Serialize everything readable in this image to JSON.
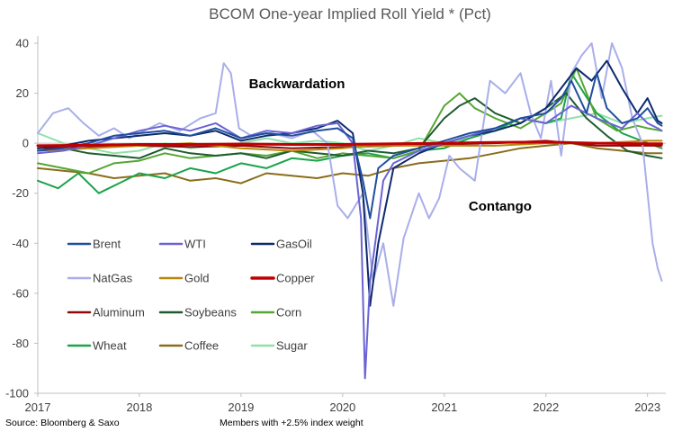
{
  "chart_data": {
    "type": "line",
    "title": "BCOM One-year Implied Roll Yield * (Pct)",
    "xlabel": "",
    "ylabel": "",
    "xlim": [
      2017.0,
      2023.18
    ],
    "ylim": [
      -100,
      42
    ],
    "x_ticks": [
      "2017",
      "2018",
      "2019",
      "2020",
      "2021",
      "2022",
      "2023"
    ],
    "y_ticks": [
      "40",
      "20",
      "0",
      "-20",
      "-40",
      "-60",
      "-80",
      "-100"
    ],
    "grid": false,
    "legend_placement": "lower-left",
    "annotations": [
      "Backwardation",
      "Contango"
    ],
    "series": [
      {
        "name": "Brent",
        "color": "#1f4e9e",
        "width": 2,
        "x": [
          2017.0,
          2017.25,
          2017.5,
          2017.75,
          2018.0,
          2018.25,
          2018.5,
          2018.75,
          2019.0,
          2019.25,
          2019.5,
          2019.75,
          2019.95,
          2020.1,
          2020.2,
          2020.27,
          2020.35,
          2020.5,
          2020.75,
          2021.0,
          2021.25,
          2021.5,
          2021.75,
          2022.0,
          2022.15,
          2022.25,
          2022.4,
          2022.5,
          2022.6,
          2022.75,
          2022.9,
          2023.0,
          2023.1,
          2023.14
        ],
        "y": [
          -3,
          -2,
          0,
          3,
          4,
          5,
          3,
          6,
          2,
          4,
          3,
          5,
          6,
          2,
          -15,
          -30,
          -10,
          -5,
          -2,
          1,
          4,
          6,
          10,
          12,
          18,
          25,
          12,
          28,
          14,
          8,
          10,
          14,
          8,
          7
        ]
      },
      {
        "name": "WTI",
        "color": "#6b63d4",
        "width": 2,
        "x": [
          2017.0,
          2017.25,
          2017.5,
          2017.75,
          2018.0,
          2018.25,
          2018.5,
          2018.75,
          2019.0,
          2019.25,
          2019.5,
          2019.75,
          2019.95,
          2020.1,
          2020.18,
          2020.22,
          2020.27,
          2020.32,
          2020.4,
          2020.5,
          2020.75,
          2021.0,
          2021.25,
          2021.5,
          2021.75,
          2022.0,
          2022.25,
          2022.5,
          2022.75,
          2022.9,
          2023.0,
          2023.1,
          2023.14
        ],
        "y": [
          -4,
          -3,
          -1,
          2,
          5,
          7,
          5,
          8,
          2,
          5,
          4,
          7,
          8,
          0,
          -30,
          -94,
          -55,
          -40,
          -15,
          -8,
          -3,
          0,
          3,
          6,
          10,
          8,
          15,
          10,
          6,
          12,
          8,
          6,
          5
        ]
      },
      {
        "name": "GasOil",
        "color": "#0d2a6e",
        "width": 2,
        "x": [
          2017.0,
          2017.25,
          2017.5,
          2017.75,
          2018.0,
          2018.25,
          2018.5,
          2018.75,
          2019.0,
          2019.25,
          2019.5,
          2019.75,
          2019.95,
          2020.1,
          2020.2,
          2020.27,
          2020.35,
          2020.5,
          2020.75,
          2021.0,
          2021.25,
          2021.5,
          2021.75,
          2022.0,
          2022.15,
          2022.3,
          2022.45,
          2022.6,
          2022.75,
          2022.9,
          2023.0,
          2023.1,
          2023.14
        ],
        "y": [
          -2,
          -1,
          1,
          2,
          3,
          4,
          3,
          5,
          1,
          3,
          4,
          6,
          9,
          4,
          -20,
          -65,
          -40,
          -10,
          -4,
          0,
          3,
          5,
          8,
          14,
          22,
          30,
          25,
          33,
          22,
          12,
          18,
          9,
          8
        ]
      },
      {
        "name": "NatGas",
        "color": "#a9aeea",
        "width": 2,
        "x": [
          2017.0,
          2017.15,
          2017.3,
          2017.45,
          2017.6,
          2017.75,
          2017.9,
          2018.0,
          2018.2,
          2018.4,
          2018.6,
          2018.75,
          2018.83,
          2018.9,
          2018.98,
          2019.1,
          2019.3,
          2019.5,
          2019.7,
          2019.85,
          2019.95,
          2020.05,
          2020.2,
          2020.3,
          2020.4,
          2020.5,
          2020.6,
          2020.75,
          2020.85,
          2020.95,
          2021.05,
          2021.15,
          2021.3,
          2021.45,
          2021.6,
          2021.75,
          2021.85,
          2021.95,
          2022.05,
          2022.15,
          2022.25,
          2022.35,
          2022.45,
          2022.55,
          2022.65,
          2022.75,
          2022.85,
          2022.95,
          2023.0,
          2023.05,
          2023.1,
          2023.14
        ],
        "y": [
          4,
          12,
          14,
          8,
          3,
          6,
          2,
          4,
          8,
          5,
          10,
          12,
          32,
          28,
          6,
          3,
          4,
          2,
          5,
          0,
          -25,
          -30,
          -20,
          -55,
          -40,
          -65,
          -38,
          -20,
          -30,
          -22,
          -5,
          -10,
          -15,
          25,
          20,
          28,
          12,
          2,
          25,
          -5,
          28,
          35,
          40,
          18,
          40,
          30,
          10,
          0,
          -20,
          -40,
          -50,
          -55
        ]
      },
      {
        "name": "Gold",
        "color": "#b8860b",
        "width": 2,
        "x": [
          2017.0,
          2017.5,
          2018.0,
          2018.5,
          2019.0,
          2019.5,
          2020.0,
          2020.25,
          2020.5,
          2020.75,
          2021.0,
          2021.5,
          2022.0,
          2022.5,
          2023.0,
          2023.14
        ],
        "y": [
          -3,
          -2,
          -1,
          0,
          -2,
          -3,
          -2,
          -1,
          -1,
          -1,
          -1,
          -1,
          0,
          0,
          1,
          1
        ]
      },
      {
        "name": "Copper",
        "color": "#c00000",
        "width": 3,
        "x": [
          2017.0,
          2017.5,
          2018.0,
          2018.5,
          2019.0,
          2019.5,
          2020.0,
          2020.5,
          2021.0,
          2021.5,
          2022.0,
          2022.5,
          2023.0,
          2023.14
        ],
        "y": [
          -1,
          -0.8,
          -0.5,
          -0.5,
          -0.3,
          -0.5,
          -0.5,
          -0.2,
          0,
          0.3,
          0.5,
          0,
          -0.2,
          -0.2
        ]
      },
      {
        "name": "Aluminum",
        "color": "#8b0a0a",
        "width": 2,
        "x": [
          2017.0,
          2017.5,
          2018.0,
          2018.5,
          2019.0,
          2019.5,
          2020.0,
          2020.5,
          2021.0,
          2021.5,
          2022.0,
          2022.5,
          2023.0,
          2023.14
        ],
        "y": [
          -2,
          -1.5,
          -1,
          -1.5,
          -1,
          -2,
          -1.5,
          -1,
          -0.5,
          0,
          1,
          -1,
          -1,
          -1
        ]
      },
      {
        "name": "Soybeans",
        "color": "#1e5c2e",
        "width": 2,
        "x": [
          2017.0,
          2017.25,
          2017.5,
          2017.75,
          2018.0,
          2018.25,
          2018.5,
          2018.75,
          2019.0,
          2019.25,
          2019.5,
          2019.75,
          2020.0,
          2020.25,
          2020.5,
          2020.75,
          2021.0,
          2021.15,
          2021.3,
          2021.5,
          2021.75,
          2022.0,
          2022.2,
          2022.4,
          2022.6,
          2022.8,
          2023.0,
          2023.14
        ],
        "y": [
          -3,
          -2,
          -4,
          -5,
          -6,
          -2,
          -4,
          -5,
          -4,
          -6,
          -3,
          -4,
          -5,
          -3,
          -4,
          -2,
          10,
          15,
          18,
          12,
          8,
          14,
          20,
          10,
          3,
          -3,
          -5,
          -6
        ]
      },
      {
        "name": "Corn",
        "color": "#55a632",
        "width": 2,
        "x": [
          2017.0,
          2017.25,
          2017.5,
          2017.75,
          2018.0,
          2018.25,
          2018.5,
          2018.75,
          2019.0,
          2019.25,
          2019.5,
          2019.75,
          2020.0,
          2020.25,
          2020.5,
          2020.75,
          2021.0,
          2021.15,
          2021.3,
          2021.5,
          2021.75,
          2022.0,
          2022.15,
          2022.3,
          2022.5,
          2022.7,
          2022.9,
          2023.0,
          2023.14
        ],
        "y": [
          -8,
          -10,
          -12,
          -8,
          -7,
          -4,
          -6,
          -5,
          -4,
          -5,
          -3,
          -6,
          -4,
          -5,
          -6,
          -3,
          15,
          20,
          14,
          10,
          6,
          12,
          16,
          30,
          10,
          5,
          7,
          6,
          5
        ]
      },
      {
        "name": "Wheat",
        "color": "#1aa34a",
        "width": 2,
        "x": [
          2017.0,
          2017.2,
          2017.4,
          2017.6,
          2017.8,
          2018.0,
          2018.25,
          2018.5,
          2018.75,
          2019.0,
          2019.25,
          2019.5,
          2019.75,
          2020.0,
          2020.25,
          2020.5,
          2020.75,
          2021.0,
          2021.25,
          2021.5,
          2021.75,
          2022.0,
          2022.15,
          2022.25,
          2022.5,
          2022.75,
          2023.0,
          2023.14
        ],
        "y": [
          -15,
          -18,
          -12,
          -20,
          -16,
          -12,
          -14,
          -10,
          -12,
          -8,
          -10,
          -6,
          -7,
          -5,
          -4,
          -6,
          -3,
          -2,
          2,
          5,
          10,
          8,
          10,
          28,
          12,
          4,
          0,
          -2
        ]
      },
      {
        "name": "Coffee",
        "color": "#8a6d1a",
        "width": 2,
        "x": [
          2017.0,
          2017.25,
          2017.5,
          2017.75,
          2018.0,
          2018.25,
          2018.5,
          2018.75,
          2019.0,
          2019.25,
          2019.5,
          2019.75,
          2020.0,
          2020.25,
          2020.5,
          2020.75,
          2021.0,
          2021.25,
          2021.5,
          2021.75,
          2022.0,
          2022.25,
          2022.5,
          2022.75,
          2023.0,
          2023.14
        ],
        "y": [
          -10,
          -11,
          -12,
          -14,
          -13,
          -12,
          -15,
          -14,
          -16,
          -12,
          -13,
          -14,
          -12,
          -13,
          -10,
          -8,
          -7,
          -6,
          -4,
          -2,
          -1,
          0,
          -2,
          -3,
          -4,
          -4
        ]
      },
      {
        "name": "Sugar",
        "color": "#90e0a8",
        "width": 2,
        "x": [
          2017.0,
          2017.25,
          2017.5,
          2017.75,
          2018.0,
          2018.25,
          2018.5,
          2018.75,
          2019.0,
          2019.25,
          2019.5,
          2019.75,
          2020.0,
          2020.25,
          2020.5,
          2020.75,
          2021.0,
          2021.25,
          2021.5,
          2021.75,
          2022.0,
          2022.25,
          2022.5,
          2022.75,
          2023.0,
          2023.14
        ],
        "y": [
          4,
          0,
          -2,
          -4,
          -3,
          0,
          -2,
          -1,
          0,
          2,
          0,
          1,
          0,
          -3,
          -1,
          2,
          0,
          2,
          6,
          10,
          8,
          10,
          12,
          8,
          10,
          11
        ]
      }
    ]
  },
  "footer": {
    "source": "Source: Bloomberg & Saxo",
    "note": "Members with +2.5% index weight"
  }
}
